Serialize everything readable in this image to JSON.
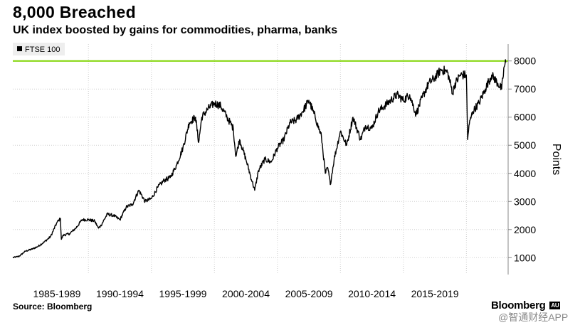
{
  "title": "8,000 Breached",
  "subtitle": "UK index boosted by gains for commodities, pharma, banks",
  "source": "Source: Bloomberg",
  "brand": "Bloomberg",
  "brand_mark": "AU",
  "watermark": "@智通财经APP",
  "colors": {
    "series": "#000000",
    "reference_line": "#7fd400",
    "grid": "#cfcfcf",
    "background": "#ffffff"
  },
  "chart_data": {
    "type": "line",
    "title": "8,000 Breached",
    "subtitle": "UK index boosted by gains for commodities, pharma, banks",
    "xlabel": "",
    "ylabel": "Points",
    "xlim": [
      1984.0,
      2023.2
    ],
    "ylim": [
      400,
      8600
    ],
    "y_ticks": [
      1000,
      2000,
      3000,
      4000,
      5000,
      6000,
      7000,
      8000
    ],
    "y_tick_labels": [
      "1000",
      "2000",
      "3000",
      "4000",
      "5000",
      "6000",
      "7000",
      "8000"
    ],
    "x_period_labels": [
      "1985-1989",
      "1990-1994",
      "1995-1999",
      "2000-2004",
      "2005-2009",
      "2010-2014",
      "2015-2019"
    ],
    "x_period_centers": [
      1987.5,
      1992.5,
      1997.5,
      2002.5,
      2007.5,
      2012.5,
      2017.5
    ],
    "x_boundaries": [
      1990,
      1995,
      2000,
      2005,
      2010,
      2015,
      2020
    ],
    "grid": true,
    "legend": {
      "position": "top-left",
      "entries": [
        "FTSE 100"
      ]
    },
    "reference_line": {
      "value": 8000,
      "label": ""
    },
    "series": [
      {
        "name": "FTSE 100",
        "x": [
          1984.0,
          1984.5,
          1985.0,
          1985.5,
          1986.0,
          1986.5,
          1987.0,
          1987.5,
          1987.78,
          1987.85,
          1988.0,
          1988.5,
          1989.0,
          1989.5,
          1990.0,
          1990.5,
          1990.8,
          1991.0,
          1991.5,
          1992.0,
          1992.5,
          1993.0,
          1993.5,
          1994.0,
          1994.5,
          1995.0,
          1995.5,
          1996.0,
          1996.5,
          1997.0,
          1997.5,
          1998.0,
          1998.5,
          1998.75,
          1999.0,
          1999.5,
          2000.0,
          2000.5,
          2001.0,
          2001.5,
          2001.7,
          2002.0,
          2002.5,
          2003.0,
          2003.2,
          2003.5,
          2004.0,
          2004.5,
          2005.0,
          2005.5,
          2006.0,
          2006.5,
          2007.0,
          2007.5,
          2008.0,
          2008.5,
          2008.8,
          2009.0,
          2009.2,
          2009.5,
          2010.0,
          2010.5,
          2011.0,
          2011.6,
          2012.0,
          2012.5,
          2013.0,
          2013.5,
          2014.0,
          2014.5,
          2015.0,
          2015.5,
          2016.0,
          2016.5,
          2017.0,
          2017.5,
          2018.0,
          2018.5,
          2018.95,
          2019.0,
          2019.5,
          2020.0,
          2020.1,
          2020.2,
          2020.5,
          2021.0,
          2021.5,
          2022.0,
          2022.5,
          2022.8,
          2023.0,
          2023.13
        ],
        "values": [
          1000,
          1050,
          1230,
          1300,
          1400,
          1560,
          1750,
          2250,
          2400,
          1650,
          1800,
          1850,
          2050,
          2350,
          2350,
          2300,
          2050,
          2150,
          2550,
          2500,
          2350,
          2800,
          2900,
          3400,
          3000,
          3100,
          3500,
          3750,
          3850,
          4300,
          4900,
          5800,
          6000,
          5100,
          6000,
          6300,
          6500,
          6400,
          6000,
          5600,
          4600,
          5200,
          4500,
          3700,
          3400,
          4100,
          4500,
          4400,
          4900,
          5200,
          5800,
          5900,
          6200,
          6600,
          6000,
          5300,
          4000,
          4200,
          3600,
          4500,
          5500,
          5000,
          6000,
          5200,
          5700,
          5600,
          6200,
          6400,
          6600,
          6800,
          6600,
          6800,
          6100,
          6700,
          7200,
          7400,
          7700,
          7600,
          6800,
          7100,
          7500,
          7500,
          5200,
          5700,
          6200,
          6500,
          7000,
          7500,
          7200,
          7000,
          7800,
          7950
        ]
      }
    ]
  }
}
